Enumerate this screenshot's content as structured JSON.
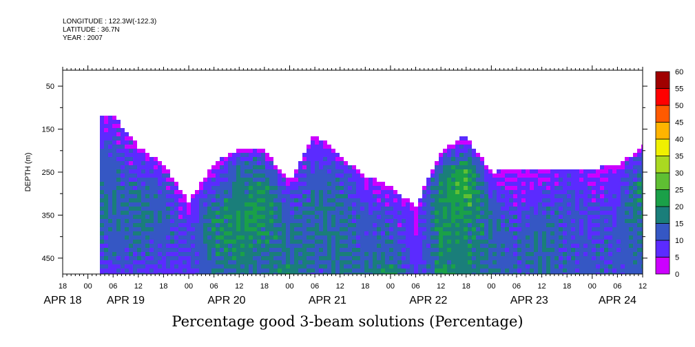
{
  "header": {
    "longitude": "LONGITUDE : 122.3W(-122.3)",
    "latitude": "LATITUDE : 36.7N",
    "year": "YEAR : 2007"
  },
  "chart_data": {
    "type": "heatmap",
    "title": "Percentage good 3-beam solutions (Percentage)",
    "ylabel": "DEPTH (m)",
    "xlabel": "",
    "x_hours_since": "APR 18 18:00",
    "xlim_hours": [
      0,
      138
    ],
    "ylim": [
      487,
      13
    ],
    "y_ticks": [
      50,
      150,
      250,
      350,
      450
    ],
    "x_tick_labels": [
      "18",
      "00",
      "06",
      "12",
      "18",
      "00",
      "06",
      "12",
      "18",
      "00",
      "06",
      "12",
      "18",
      "00",
      "06",
      "12",
      "18",
      "00",
      "06",
      "12",
      "18",
      "00",
      "06",
      "12"
    ],
    "date_labels": [
      {
        "label": "APR 18",
        "hour": 0
      },
      {
        "label": "APR 19",
        "hour": 15
      },
      {
        "label": "APR 20",
        "hour": 39
      },
      {
        "label": "APR 21",
        "hour": 63
      },
      {
        "label": "APR 22",
        "hour": 87
      },
      {
        "label": "APR 23",
        "hour": 111
      },
      {
        "label": "APR 24",
        "hour": 132
      }
    ],
    "depth_levels": [
      200,
      250,
      300,
      350,
      400,
      450,
      480
    ],
    "columns": [
      {
        "hour": 0,
        "top": null,
        "values": [
          null,
          null,
          null,
          null,
          null,
          null,
          null
        ]
      },
      {
        "hour": 6,
        "top": null,
        "values": [
          null,
          null,
          null,
          null,
          null,
          null,
          null
        ]
      },
      {
        "hour": 12,
        "top": 115,
        "values": [
          12,
          12,
          15,
          15,
          12,
          12,
          8
        ]
      },
      {
        "hour": 18,
        "top": 190,
        "values": [
          5,
          10,
          15,
          15,
          15,
          12,
          10
        ]
      },
      {
        "hour": 24,
        "top": 230,
        "values": [
          null,
          8,
          12,
          15,
          12,
          10,
          8
        ]
      },
      {
        "hour": 30,
        "top": 320,
        "values": [
          null,
          null,
          null,
          5,
          10,
          10,
          8
        ]
      },
      {
        "hour": 36,
        "top": 230,
        "values": [
          null,
          5,
          12,
          18,
          18,
          15,
          15
        ]
      },
      {
        "hour": 42,
        "top": 195,
        "values": [
          8,
          15,
          18,
          20,
          20,
          18,
          15
        ]
      },
      {
        "hour": 48,
        "top": 200,
        "values": [
          10,
          15,
          20,
          20,
          18,
          15,
          15
        ]
      },
      {
        "hour": 54,
        "top": 270,
        "values": [
          null,
          null,
          8,
          12,
          15,
          15,
          20
        ]
      },
      {
        "hour": 60,
        "top": 160,
        "values": [
          8,
          12,
          15,
          15,
          15,
          15,
          12
        ]
      },
      {
        "hour": 66,
        "top": 210,
        "values": [
          null,
          12,
          15,
          15,
          15,
          15,
          15
        ]
      },
      {
        "hour": 72,
        "top": 260,
        "values": [
          null,
          null,
          8,
          12,
          12,
          15,
          15
        ]
      },
      {
        "hour": 78,
        "top": 280,
        "values": [
          null,
          null,
          5,
          10,
          12,
          15,
          20
        ]
      },
      {
        "hour": 84,
        "top": 330,
        "values": [
          null,
          null,
          null,
          5,
          5,
          8,
          8
        ]
      },
      {
        "hour": 90,
        "top": 200,
        "values": [
          8,
          15,
          20,
          20,
          20,
          18,
          20
        ]
      },
      {
        "hour": 96,
        "top": 165,
        "values": [
          10,
          25,
          25,
          20,
          18,
          18,
          18
        ]
      },
      {
        "hour": 102,
        "top": 250,
        "values": [
          null,
          5,
          10,
          15,
          15,
          15,
          15
        ]
      },
      {
        "hour": 108,
        "top": 240,
        "values": [
          null,
          5,
          5,
          10,
          12,
          12,
          12
        ]
      },
      {
        "hour": 114,
        "top": 240,
        "values": [
          null,
          5,
          8,
          12,
          15,
          15,
          15
        ]
      },
      {
        "hour": 120,
        "top": 240,
        "values": [
          null,
          8,
          10,
          12,
          12,
          12,
          12
        ]
      },
      {
        "hour": 126,
        "top": 240,
        "values": [
          null,
          5,
          8,
          10,
          10,
          12,
          12
        ]
      },
      {
        "hour": 132,
        "top": 235,
        "values": [
          null,
          5,
          8,
          10,
          12,
          12,
          12
        ]
      },
      {
        "hour": 138,
        "top": 190,
        "values": [
          8,
          15,
          20,
          18,
          15,
          15,
          12
        ]
      }
    ],
    "colorbar": {
      "levels": [
        0,
        5,
        10,
        15,
        20,
        25,
        30,
        35,
        40,
        45,
        50,
        55,
        60
      ],
      "labels": [
        "0",
        "5",
        "10",
        "15",
        "20",
        "25",
        "30",
        "35",
        "40",
        "45",
        "50",
        "55",
        "60"
      ],
      "colors": [
        "#cc00ff",
        "#5b2bff",
        "#3557c4",
        "#1a7e7a",
        "#1aa048",
        "#5fbf33",
        "#aad921",
        "#f0f000",
        "#ffb400",
        "#ff5a00",
        "#ff0000",
        "#a00000"
      ]
    }
  }
}
